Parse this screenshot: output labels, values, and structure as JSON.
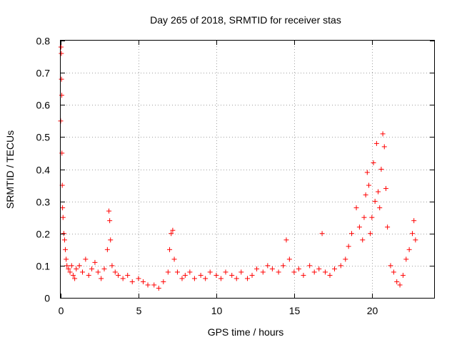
{
  "chart_data": {
    "type": "scatter",
    "title": "Day 265 of 2018, SRMTID for receiver stas",
    "xlabel": "GPS time / hours",
    "ylabel": "SRMTID / TECUs",
    "xlim": [
      0,
      24
    ],
    "ylim": [
      0,
      0.8
    ],
    "xticks": [
      0,
      5,
      10,
      15,
      20
    ],
    "xtick_labels": [
      "0",
      "5",
      "10",
      "15",
      "20"
    ],
    "yticks": [
      0,
      0.1,
      0.2,
      0.3,
      0.4,
      0.5,
      0.6,
      0.7,
      0.8
    ],
    "ytick_labels": [
      "0",
      "0.1",
      "0.2",
      "0.3",
      "0.4",
      "0.5",
      "0.6",
      "0.7",
      "0.8"
    ],
    "grid": true,
    "marker": "+",
    "color": "#ff0000",
    "series": [
      {
        "name": "SRMTID",
        "x": [
          0.0,
          0.02,
          0.04,
          0.05,
          0.07,
          0.08,
          0.1,
          0.12,
          0.15,
          0.2,
          0.25,
          0.3,
          0.35,
          0.4,
          0.5,
          0.6,
          0.7,
          0.8,
          0.9,
          1.0,
          1.2,
          1.4,
          1.6,
          1.8,
          2.0,
          2.2,
          2.4,
          2.6,
          2.8,
          3.0,
          3.1,
          3.15,
          3.2,
          3.3,
          3.5,
          3.7,
          4.0,
          4.3,
          4.6,
          5.0,
          5.3,
          5.6,
          6.0,
          6.3,
          6.6,
          6.9,
          7.0,
          7.1,
          7.2,
          7.3,
          7.5,
          7.8,
          8.0,
          8.3,
          8.6,
          9.0,
          9.3,
          9.6,
          10.0,
          10.3,
          10.6,
          11.0,
          11.3,
          11.6,
          12.0,
          12.3,
          12.6,
          13.0,
          13.3,
          13.6,
          14.0,
          14.3,
          14.5,
          14.7,
          15.0,
          15.3,
          15.6,
          16.0,
          16.3,
          16.6,
          16.8,
          17.0,
          17.3,
          17.6,
          18.0,
          18.3,
          18.5,
          18.7,
          19.0,
          19.2,
          19.4,
          19.5,
          19.6,
          19.7,
          19.8,
          19.9,
          20.0,
          20.1,
          20.2,
          20.3,
          20.4,
          20.5,
          20.6,
          20.7,
          20.8,
          20.9,
          21.0,
          21.2,
          21.4,
          21.6,
          21.8,
          22.0,
          22.2,
          22.4,
          22.6,
          22.7,
          22.8
        ],
        "y": [
          0.55,
          0.78,
          0.76,
          0.68,
          0.63,
          0.45,
          0.35,
          0.28,
          0.25,
          0.2,
          0.18,
          0.15,
          0.12,
          0.1,
          0.09,
          0.08,
          0.1,
          0.07,
          0.06,
          0.09,
          0.1,
          0.08,
          0.12,
          0.07,
          0.09,
          0.11,
          0.08,
          0.06,
          0.09,
          0.15,
          0.27,
          0.24,
          0.18,
          0.1,
          0.08,
          0.07,
          0.06,
          0.07,
          0.05,
          0.06,
          0.05,
          0.04,
          0.04,
          0.03,
          0.05,
          0.08,
          0.15,
          0.2,
          0.21,
          0.12,
          0.08,
          0.06,
          0.07,
          0.08,
          0.06,
          0.07,
          0.06,
          0.08,
          0.07,
          0.06,
          0.08,
          0.07,
          0.06,
          0.08,
          0.06,
          0.07,
          0.09,
          0.08,
          0.1,
          0.09,
          0.08,
          0.1,
          0.18,
          0.12,
          0.08,
          0.09,
          0.07,
          0.1,
          0.08,
          0.09,
          0.2,
          0.08,
          0.07,
          0.09,
          0.1,
          0.12,
          0.16,
          0.2,
          0.28,
          0.22,
          0.18,
          0.25,
          0.32,
          0.39,
          0.35,
          0.2,
          0.25,
          0.42,
          0.3,
          0.48,
          0.33,
          0.28,
          0.4,
          0.51,
          0.47,
          0.34,
          0.22,
          0.1,
          0.08,
          0.05,
          0.04,
          0.07,
          0.12,
          0.15,
          0.2,
          0.24,
          0.18
        ]
      }
    ]
  }
}
